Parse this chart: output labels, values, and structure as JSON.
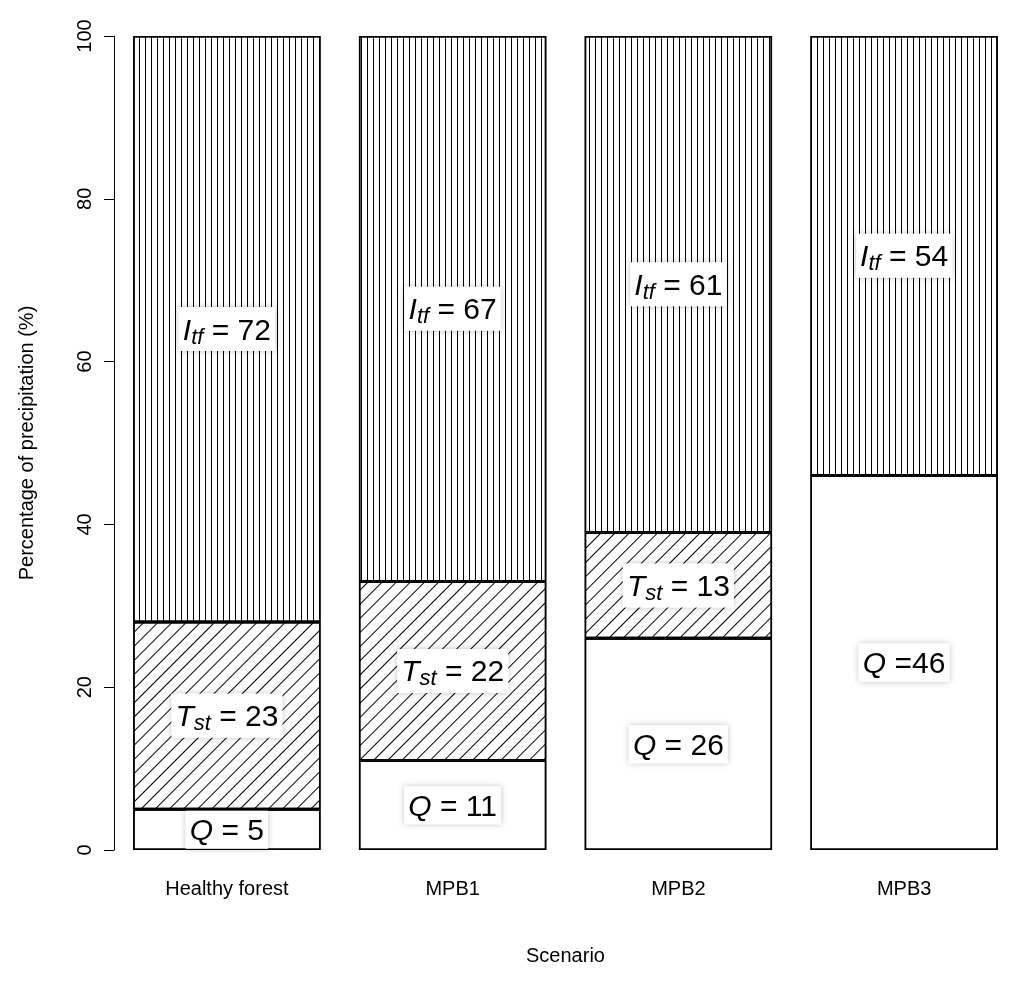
{
  "chart_data": {
    "type": "bar",
    "stacked": true,
    "xlabel": "Scenario",
    "ylabel": "Percentage of precipitation (%)",
    "categories": [
      "Healthy forest",
      "MPB1",
      "MPB2",
      "MPB3"
    ],
    "series": [
      {
        "color": "#ffffff",
        "values": [
          5,
          11,
          26,
          46
        ],
        "value_labels": [
          "Q = 5",
          "Q = 11",
          "Q = 26",
          "Q =46"
        ]
      },
      {
        "color": "#ffffff",
        "values": [
          23,
          22,
          13,
          0
        ],
        "value_labels": [
          "T$_{st}$ = 23",
          "T$_{st}$ = 22",
          "T$_{st}$ = 13",
          null
        ]
      },
      {
        "color": "#ffffff",
        "values": [
          72,
          67,
          61,
          54
        ],
        "value_labels": [
          "I$_{tf}$ = 72",
          "I$_{tf}$ = 67",
          "I$_{tf}$ = 61",
          "I$_{tf}$ = 54"
        ]
      }
    ],
    "ylim": [
      0,
      100
    ],
    "yticks": [
      0,
      20,
      40,
      60,
      80,
      100
    ],
    "grid": false
  }
}
